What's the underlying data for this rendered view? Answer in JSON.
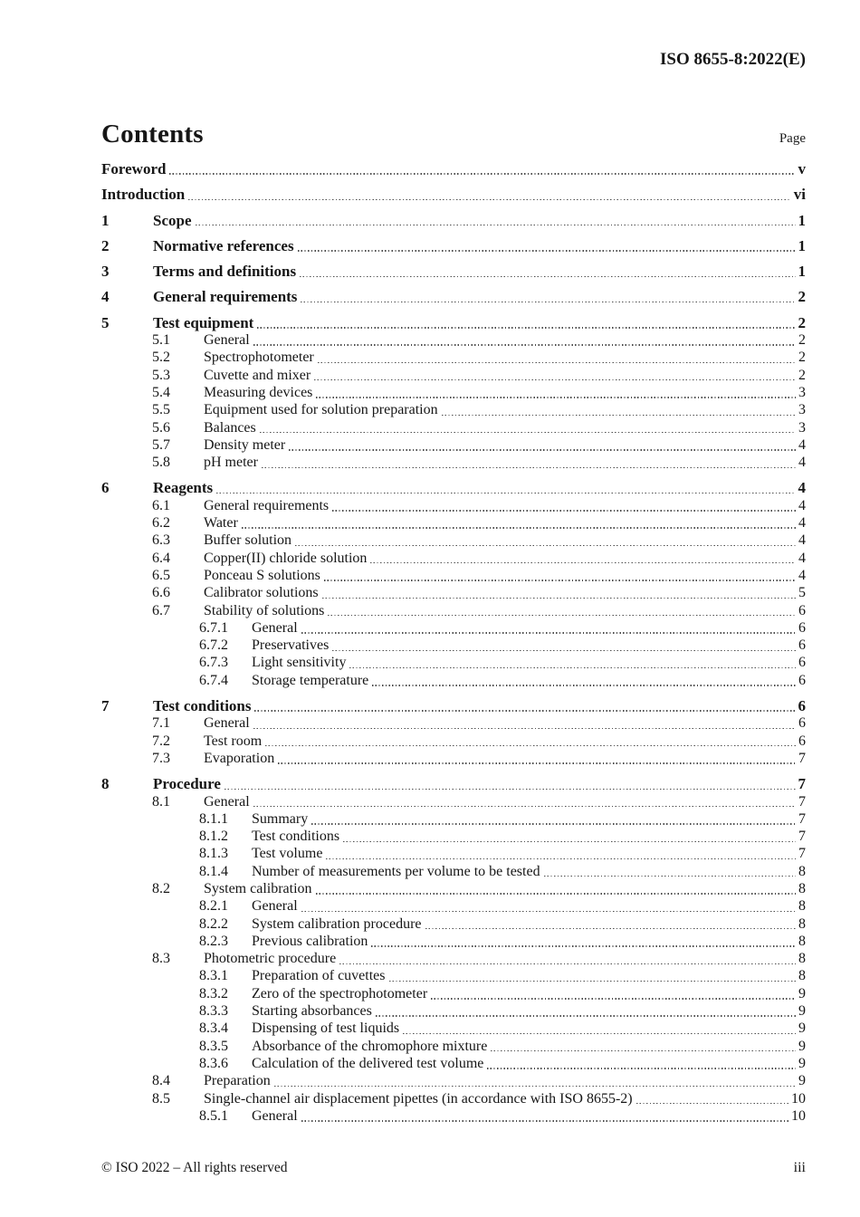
{
  "header": {
    "doc_ref": "ISO 8655-8:2022(E)"
  },
  "contents": {
    "title": "Contents",
    "page_label": "Page"
  },
  "toc": {
    "entries": [
      {
        "level": 1,
        "num": "",
        "title": "Foreword",
        "page": "v"
      },
      {
        "level": 1,
        "num": "",
        "title": "Introduction",
        "page": "vi"
      },
      {
        "level": 1,
        "num": "1",
        "title": "Scope",
        "page": "1"
      },
      {
        "level": 1,
        "num": "2",
        "title": "Normative references",
        "page": "1"
      },
      {
        "level": 1,
        "num": "3",
        "title": "Terms and definitions",
        "page": "1"
      },
      {
        "level": 1,
        "num": "4",
        "title": "General requirements",
        "page": "2"
      },
      {
        "level": 1,
        "num": "5",
        "title": "Test equipment",
        "page": "2"
      },
      {
        "level": 2,
        "num": "5.1",
        "title": "General",
        "page": "2"
      },
      {
        "level": 2,
        "num": "5.2",
        "title": "Spectrophotometer",
        "page": "2"
      },
      {
        "level": 2,
        "num": "5.3",
        "title": "Cuvette and mixer",
        "page": "2"
      },
      {
        "level": 2,
        "num": "5.4",
        "title": "Measuring devices",
        "page": "3"
      },
      {
        "level": 2,
        "num": "5.5",
        "title": "Equipment used for solution preparation",
        "page": "3"
      },
      {
        "level": 2,
        "num": "5.6",
        "title": "Balances",
        "page": "3"
      },
      {
        "level": 2,
        "num": "5.7",
        "title": "Density meter",
        "page": "4"
      },
      {
        "level": 2,
        "num": "5.8",
        "title": "pH meter",
        "page": "4"
      },
      {
        "level": 1,
        "num": "6",
        "title": "Reagents",
        "page": "4"
      },
      {
        "level": 2,
        "num": "6.1",
        "title": "General requirements",
        "page": "4"
      },
      {
        "level": 2,
        "num": "6.2",
        "title": "Water",
        "page": "4"
      },
      {
        "level": 2,
        "num": "6.3",
        "title": "Buffer solution",
        "page": "4"
      },
      {
        "level": 2,
        "num": "6.4",
        "title": "Copper(II) chloride solution",
        "page": "4"
      },
      {
        "level": 2,
        "num": "6.5",
        "title": "Ponceau S solutions",
        "page": "4"
      },
      {
        "level": 2,
        "num": "6.6",
        "title": "Calibrator solutions",
        "page": "5"
      },
      {
        "level": 2,
        "num": "6.7",
        "title": "Stability of solutions",
        "page": "6"
      },
      {
        "level": 3,
        "num": "6.7.1",
        "title": "General",
        "page": "6"
      },
      {
        "level": 3,
        "num": "6.7.2",
        "title": "Preservatives",
        "page": "6"
      },
      {
        "level": 3,
        "num": "6.7.3",
        "title": "Light sensitivity",
        "page": "6"
      },
      {
        "level": 3,
        "num": "6.7.4",
        "title": "Storage temperature",
        "page": "6"
      },
      {
        "level": 1,
        "num": "7",
        "title": "Test conditions",
        "page": "6"
      },
      {
        "level": 2,
        "num": "7.1",
        "title": "General",
        "page": "6"
      },
      {
        "level": 2,
        "num": "7.2",
        "title": "Test room",
        "page": "6"
      },
      {
        "level": 2,
        "num": "7.3",
        "title": "Evaporation",
        "page": "7"
      },
      {
        "level": 1,
        "num": "8",
        "title": "Procedure",
        "page": "7"
      },
      {
        "level": 2,
        "num": "8.1",
        "title": "General",
        "page": "7"
      },
      {
        "level": 3,
        "num": "8.1.1",
        "title": "Summary",
        "page": "7"
      },
      {
        "level": 3,
        "num": "8.1.2",
        "title": "Test conditions",
        "page": "7"
      },
      {
        "level": 3,
        "num": "8.1.3",
        "title": "Test volume",
        "page": "7"
      },
      {
        "level": 3,
        "num": "8.1.4",
        "title": "Number of measurements per volume to be tested",
        "page": "8"
      },
      {
        "level": 2,
        "num": "8.2",
        "title": "System calibration",
        "page": "8"
      },
      {
        "level": 3,
        "num": "8.2.1",
        "title": "General",
        "page": "8"
      },
      {
        "level": 3,
        "num": "8.2.2",
        "title": "System calibration procedure",
        "page": "8"
      },
      {
        "level": 3,
        "num": "8.2.3",
        "title": "Previous calibration",
        "page": "8"
      },
      {
        "level": 2,
        "num": "8.3",
        "title": "Photometric procedure",
        "page": "8"
      },
      {
        "level": 3,
        "num": "8.3.1",
        "title": "Preparation of cuvettes",
        "page": "8"
      },
      {
        "level": 3,
        "num": "8.3.2",
        "title": "Zero of the spectrophotometer",
        "page": "9"
      },
      {
        "level": 3,
        "num": "8.3.3",
        "title": "Starting absorbances",
        "page": "9"
      },
      {
        "level": 3,
        "num": "8.3.4",
        "title": "Dispensing of test liquids",
        "page": "9"
      },
      {
        "level": 3,
        "num": "8.3.5",
        "title": "Absorbance of the chromophore mixture",
        "page": "9"
      },
      {
        "level": 3,
        "num": "8.3.6",
        "title": "Calculation of the delivered test volume",
        "page": "9"
      },
      {
        "level": 2,
        "num": "8.4",
        "title": "Preparation",
        "page": "9"
      },
      {
        "level": 2,
        "num": "8.5",
        "title": "Single-channel air displacement pipettes (in accordance with ISO 8655-2)",
        "page": "10"
      },
      {
        "level": 3,
        "num": "8.5.1",
        "title": "General",
        "page": "10"
      }
    ]
  },
  "footer": {
    "copyright": "© ISO 2022 – All rights reserved",
    "folio": "iii"
  }
}
